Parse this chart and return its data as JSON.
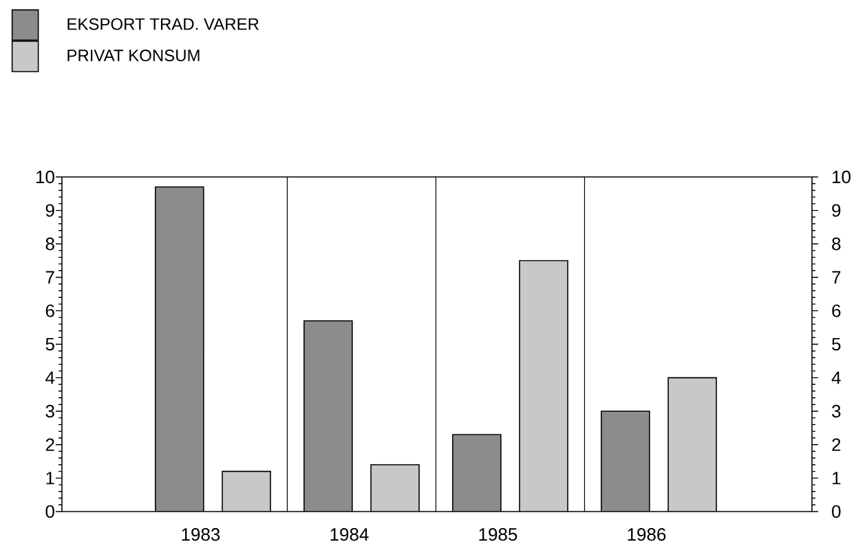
{
  "chart_data": {
    "type": "bar",
    "categories": [
      "1983",
      "1984",
      "1985",
      "1986"
    ],
    "series": [
      {
        "name": "EKSPORT TRAD. VARER",
        "color": "#8c8c8c",
        "values": [
          9.7,
          5.7,
          2.3,
          3.0
        ]
      },
      {
        "name": "PRIVAT KONSUM",
        "color": "#c8c8c8",
        "values": [
          1.2,
          1.4,
          7.5,
          4.0
        ]
      }
    ],
    "ylim": [
      0,
      10
    ],
    "yticks": [
      0,
      1,
      2,
      3,
      4,
      5,
      6,
      7,
      8,
      9,
      10
    ],
    "y2lim": [
      0,
      10
    ],
    "y2ticks": [
      0,
      1,
      2,
      3,
      4,
      5,
      6,
      7,
      8,
      9,
      10
    ],
    "grid": "x",
    "legend": "top left"
  }
}
